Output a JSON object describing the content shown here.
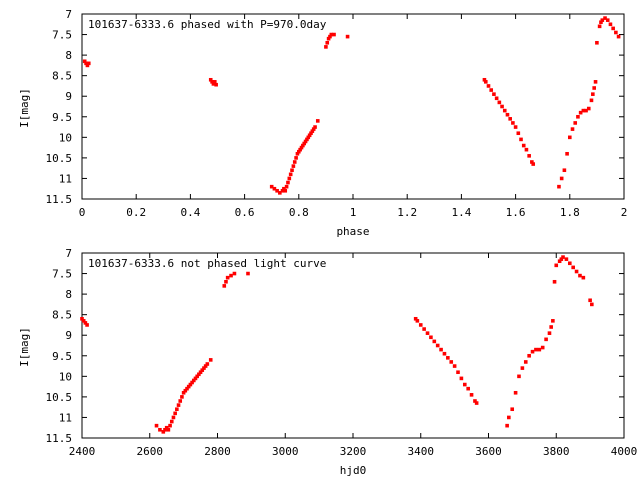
{
  "chart_data": [
    {
      "type": "scatter",
      "title": "101637-6333.6 phased with P=970.0day",
      "xlabel": "phase",
      "ylabel": "I[mag]",
      "xlim": [
        0,
        2
      ],
      "ylim": [
        11.5,
        7
      ],
      "y_reversed": true,
      "x_ticks": [
        "0",
        "0.2",
        "0.4",
        "0.6",
        "0.8",
        "1",
        "1.2",
        "1.4",
        "1.6",
        "1.8",
        "2"
      ],
      "y_ticks": [
        "7",
        "7.5",
        "8",
        "8.5",
        "9",
        "9.5",
        "10",
        "10.5",
        "11",
        "11.5"
      ],
      "grid": false,
      "marker_color": "#ff0000",
      "series": [
        {
          "x": [
            0.01,
            0.015,
            0.02,
            0.025,
            0.475,
            0.48,
            0.485,
            0.49,
            0.495,
            0.7,
            0.71,
            0.72,
            0.73,
            0.74,
            0.745,
            0.75,
            0.755,
            0.76,
            0.765,
            0.77,
            0.775,
            0.78,
            0.785,
            0.79,
            0.795,
            0.8,
            0.805,
            0.81,
            0.815,
            0.82,
            0.825,
            0.83,
            0.835,
            0.84,
            0.845,
            0.85,
            0.855,
            0.86,
            0.87,
            0.9,
            0.905,
            0.91,
            0.915,
            0.92,
            0.93,
            0.98,
            1.485,
            1.49,
            1.5,
            1.51,
            1.52,
            1.53,
            1.54,
            1.55,
            1.56,
            1.57,
            1.58,
            1.59,
            1.6,
            1.61,
            1.62,
            1.63,
            1.64,
            1.65,
            1.66,
            1.665,
            1.76,
            1.77,
            1.78,
            1.79,
            1.8,
            1.81,
            1.82,
            1.83,
            1.84,
            1.85,
            1.86,
            1.87,
            1.88,
            1.885,
            1.89,
            1.895,
            1.9,
            1.91,
            1.915,
            1.92,
            1.93,
            1.94,
            1.95,
            1.96,
            1.97,
            1.98
          ],
          "y": [
            8.15,
            8.2,
            8.25,
            8.2,
            8.6,
            8.65,
            8.7,
            8.65,
            8.72,
            11.2,
            11.25,
            11.3,
            11.35,
            11.3,
            11.25,
            11.3,
            11.2,
            11.1,
            11.0,
            10.9,
            10.8,
            10.7,
            10.6,
            10.5,
            10.4,
            10.35,
            10.3,
            10.25,
            10.2,
            10.15,
            10.1,
            10.05,
            10.0,
            9.95,
            9.9,
            9.85,
            9.8,
            9.75,
            9.6,
            7.8,
            7.7,
            7.6,
            7.55,
            7.5,
            7.5,
            7.55,
            8.6,
            8.65,
            8.75,
            8.85,
            8.95,
            9.05,
            9.15,
            9.25,
            9.35,
            9.45,
            9.55,
            9.65,
            9.75,
            9.9,
            10.05,
            10.2,
            10.3,
            10.45,
            10.6,
            10.65,
            11.2,
            11.0,
            10.8,
            10.4,
            10.0,
            9.8,
            9.65,
            9.5,
            9.4,
            9.35,
            9.35,
            9.3,
            9.1,
            8.95,
            8.8,
            8.65,
            7.7,
            7.3,
            7.2,
            7.15,
            7.1,
            7.15,
            7.25,
            7.35,
            7.45,
            7.55
          ]
        }
      ]
    },
    {
      "type": "scatter",
      "title": "101637-6333.6 not phased light curve",
      "xlabel": "hjd0",
      "ylabel": "I[mag]",
      "xlim": [
        2400,
        4000
      ],
      "ylim": [
        11.5,
        7
      ],
      "y_reversed": true,
      "x_ticks": [
        "2400",
        "2600",
        "2800",
        "3000",
        "3200",
        "3400",
        "3600",
        "3800",
        "4000"
      ],
      "y_ticks": [
        "7",
        "7.5",
        "8",
        "8.5",
        "9",
        "9.5",
        "10",
        "10.5",
        "11",
        "11.5"
      ],
      "grid": false,
      "marker_color": "#ff0000",
      "series": [
        {
          "x": [
            2400,
            2405,
            2410,
            2415,
            2620,
            2630,
            2640,
            2645,
            2650,
            2655,
            2660,
            2665,
            2670,
            2675,
            2680,
            2685,
            2690,
            2695,
            2700,
            2705,
            2710,
            2715,
            2720,
            2725,
            2730,
            2735,
            2740,
            2745,
            2750,
            2755,
            2760,
            2765,
            2770,
            2780,
            2820,
            2825,
            2830,
            2840,
            2850,
            2890,
            3385,
            3390,
            3400,
            3410,
            3420,
            3430,
            3440,
            3450,
            3460,
            3470,
            3480,
            3490,
            3500,
            3510,
            3520,
            3530,
            3540,
            3550,
            3560,
            3565,
            3655,
            3660,
            3670,
            3680,
            3690,
            3700,
            3710,
            3720,
            3730,
            3740,
            3750,
            3760,
            3770,
            3780,
            3785,
            3790,
            3795,
            3800,
            3810,
            3815,
            3820,
            3830,
            3840,
            3850,
            3860,
            3870,
            3880,
            3900,
            3905
          ],
          "y": [
            8.6,
            8.65,
            8.7,
            8.75,
            11.2,
            11.3,
            11.35,
            11.3,
            11.25,
            11.3,
            11.2,
            11.1,
            11.0,
            10.9,
            10.8,
            10.7,
            10.6,
            10.5,
            10.4,
            10.35,
            10.3,
            10.25,
            10.2,
            10.15,
            10.1,
            10.05,
            10.0,
            9.95,
            9.9,
            9.85,
            9.8,
            9.75,
            9.7,
            9.6,
            7.8,
            7.7,
            7.6,
            7.55,
            7.5,
            7.5,
            8.6,
            8.65,
            8.75,
            8.85,
            8.95,
            9.05,
            9.15,
            9.25,
            9.35,
            9.45,
            9.55,
            9.65,
            9.75,
            9.9,
            10.05,
            10.2,
            10.3,
            10.45,
            10.6,
            10.65,
            11.2,
            11.0,
            10.8,
            10.4,
            10.0,
            9.8,
            9.65,
            9.5,
            9.4,
            9.35,
            9.35,
            9.3,
            9.1,
            8.95,
            8.8,
            8.65,
            7.7,
            7.3,
            7.2,
            7.15,
            7.1,
            7.15,
            7.25,
            7.35,
            7.45,
            7.55,
            7.6,
            8.15,
            8.25
          ]
        }
      ]
    }
  ]
}
